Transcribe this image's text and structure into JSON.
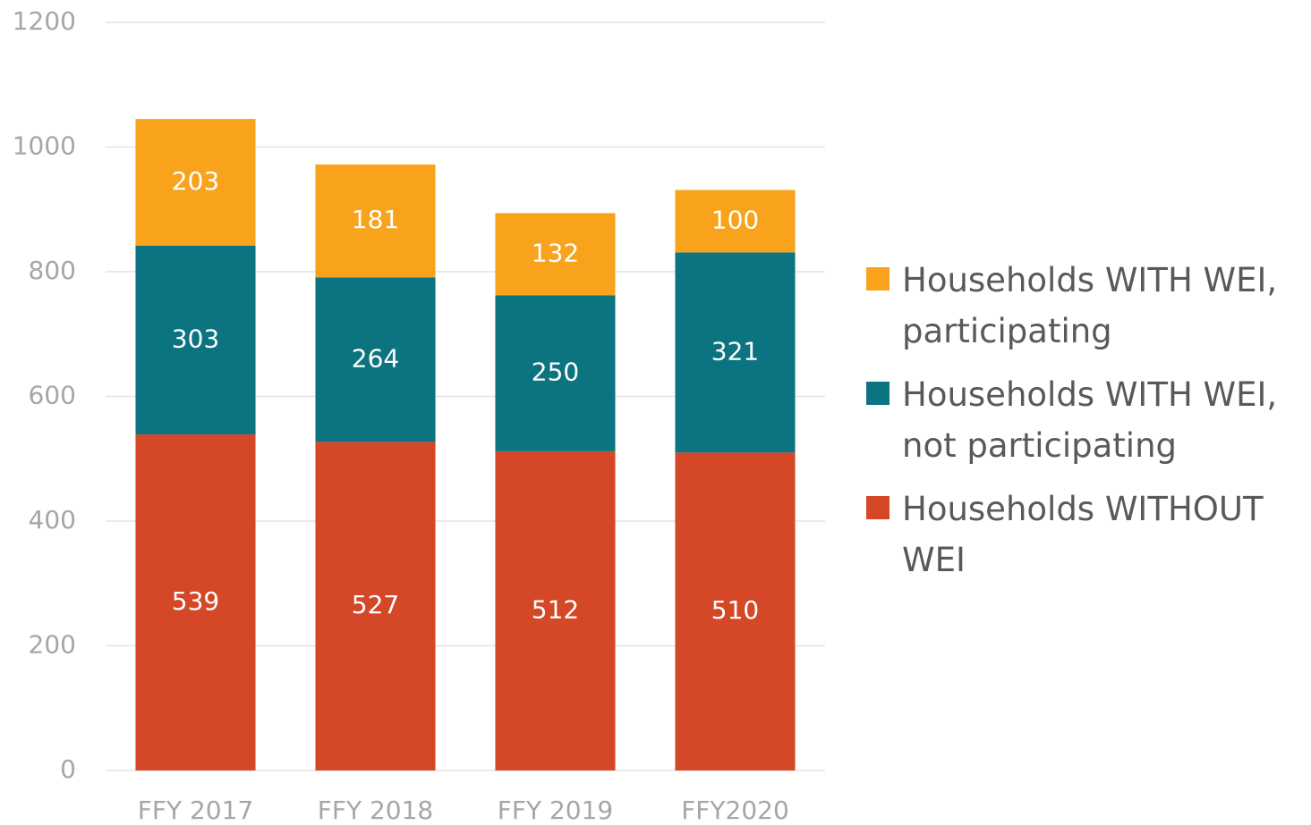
{
  "chart_data": {
    "type": "stacked_bar",
    "categories": [
      "FFY 2017",
      "FFY 2018",
      "FFY 2019",
      "FFY2020"
    ],
    "series": [
      {
        "name": "Households WITHOUT WEI",
        "color": "#d44727",
        "values": [
          539,
          527,
          512,
          510
        ]
      },
      {
        "name": "Households WITH WEI, not participating",
        "color": "#0b7480",
        "values": [
          303,
          264,
          250,
          321
        ]
      },
      {
        "name": "Households WITH WEI, participating",
        "color": "#f9a31d",
        "values": [
          203,
          181,
          132,
          100
        ]
      }
    ],
    "ylim": [
      0,
      1200
    ],
    "yticks": [
      0,
      200,
      400,
      600,
      800,
      1000,
      1200
    ],
    "grid": true,
    "legend": "right"
  }
}
